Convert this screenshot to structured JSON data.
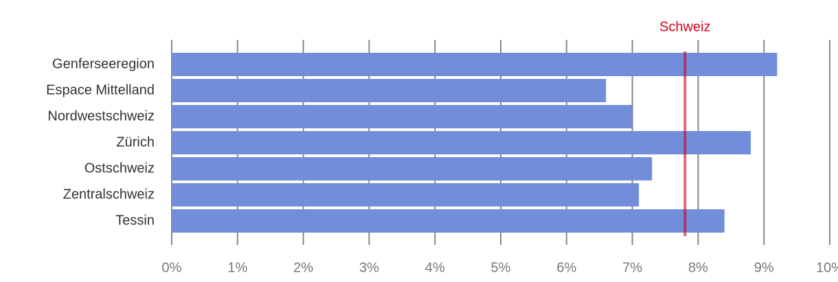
{
  "chart_data": {
    "type": "hbar",
    "categories": [
      "Genferseeregion",
      "Espace Mittelland",
      "Nordwestschweiz",
      "Zürich",
      "Ostschweiz",
      "Zentralschweiz",
      "Tessin"
    ],
    "values": [
      9.2,
      6.6,
      7.0,
      8.8,
      7.3,
      7.1,
      8.4
    ],
    "color": "#728dd9",
    "xlim": [
      0,
      10
    ],
    "xticks": [
      {
        "value": 0,
        "label": "0%"
      },
      {
        "value": 1,
        "label": "1%"
      },
      {
        "value": 2,
        "label": "2%"
      },
      {
        "value": 3,
        "label": "3%"
      },
      {
        "value": 4,
        "label": "4%"
      },
      {
        "value": 5,
        "label": "5%"
      },
      {
        "value": 6,
        "label": "6%"
      },
      {
        "value": 7,
        "label": "7%"
      },
      {
        "value": 8,
        "label": "8%"
      },
      {
        "value": 9,
        "label": "9%"
      },
      {
        "value": 10,
        "label": "10%"
      }
    ],
    "grid": true,
    "reference_line": {
      "label": "Schweiz",
      "value": 7.8,
      "color": "#d0021b"
    }
  }
}
